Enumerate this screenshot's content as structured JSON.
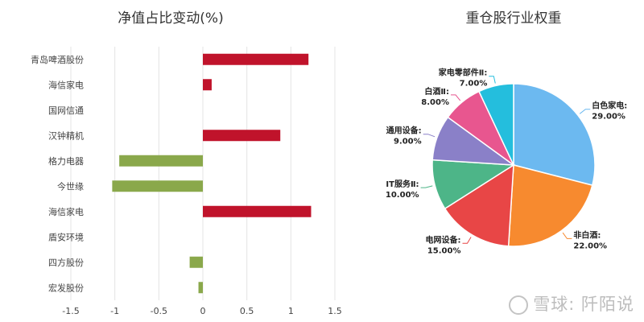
{
  "chart_data": [
    {
      "type": "bar",
      "orientation": "horizontal",
      "title": "净值占比变动(%)",
      "categories": [
        "青岛啤酒股份",
        "海信家电",
        "国网信通",
        "汉钟精机",
        "格力电器",
        "今世缘",
        "海信家电",
        "盾安环境",
        "四方股份",
        "宏发股份"
      ],
      "values": [
        1.2,
        0.1,
        0,
        0.88,
        -0.95,
        -1.03,
        1.23,
        0,
        -0.15,
        -0.05
      ],
      "xlim": [
        -1.5,
        1.5
      ],
      "xticks": [
        "-1.5",
        "-1",
        "-0.5",
        "0",
        "0.5",
        "1",
        "1.5"
      ],
      "positive_color": "#c0132b",
      "negative_color": "#8aa84b",
      "grid": true
    },
    {
      "type": "pie",
      "title": "重仓股行业权重",
      "slices": [
        {
          "label": "白色家电:",
          "percent": "29.00%",
          "value": 29,
          "color": "#6cb9f0"
        },
        {
          "label": "非白酒:",
          "percent": "22.00%",
          "value": 22,
          "color": "#f78a2f"
        },
        {
          "label": "电网设备:",
          "percent": "15.00%",
          "value": 15,
          "color": "#e84646"
        },
        {
          "label": "IT服务Ⅱ:",
          "percent": "10.00%",
          "value": 10,
          "color": "#4db588"
        },
        {
          "label": "通用设备:",
          "percent": "9.00%",
          "value": 9,
          "color": "#8a80c8"
        },
        {
          "label": "白酒Ⅱ:",
          "percent": "8.00%",
          "value": 8,
          "color": "#e8568f"
        },
        {
          "label": "家电零部件Ⅱ:",
          "percent": "7.00%",
          "value": 7,
          "color": "#24bedd"
        }
      ]
    }
  ],
  "watermark": "雪球: 阡陌说"
}
